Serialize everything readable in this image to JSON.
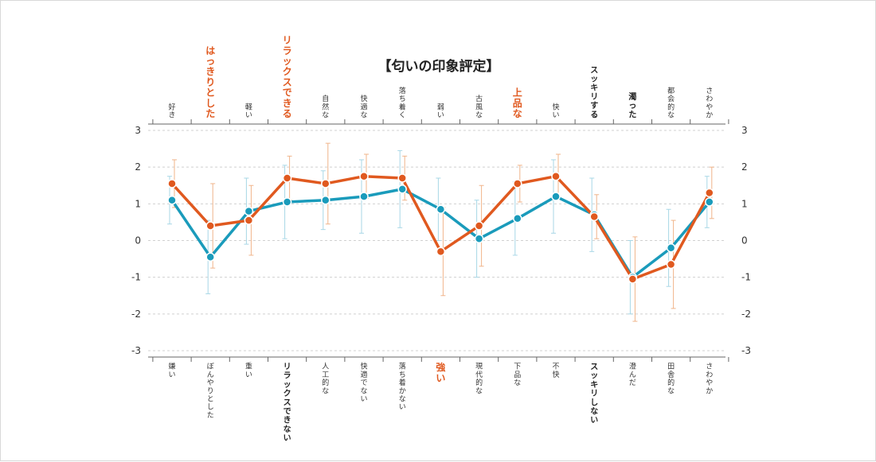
{
  "chart_data": {
    "type": "line",
    "title": "【匂いの印象評定】",
    "ylim": [
      -3,
      3
    ],
    "yticks": [
      3,
      2,
      1,
      0,
      -1,
      -2,
      -3
    ],
    "grid": true,
    "top_labels": [
      {
        "text": "好き",
        "style": "normal"
      },
      {
        "text": "はっきりとした",
        "style": "orange"
      },
      {
        "text": "軽い",
        "style": "normal"
      },
      {
        "text": "リラックスできる",
        "style": "orange"
      },
      {
        "text": "自然な",
        "style": "normal"
      },
      {
        "text": "快適な",
        "style": "normal"
      },
      {
        "text": "落ち着く",
        "style": "normal"
      },
      {
        "text": "弱い",
        "style": "normal"
      },
      {
        "text": "古風な",
        "style": "normal"
      },
      {
        "text": "上品な",
        "style": "orange"
      },
      {
        "text": "快い",
        "style": "normal"
      },
      {
        "text": "スッキリする",
        "style": "bold"
      },
      {
        "text": "濁った",
        "style": "bold"
      },
      {
        "text": "都会的な",
        "style": "normal"
      },
      {
        "text": "さわやか",
        "style": "normal"
      }
    ],
    "bottom_labels": [
      {
        "text": "嫌い",
        "style": "normal"
      },
      {
        "text": "ぼんやりとした",
        "style": "normal"
      },
      {
        "text": "重い",
        "style": "normal"
      },
      {
        "text": "リラックスできない",
        "style": "bold"
      },
      {
        "text": "人工的な",
        "style": "normal"
      },
      {
        "text": "快適でない",
        "style": "normal"
      },
      {
        "text": "落ち着かない",
        "style": "normal"
      },
      {
        "text": "強い",
        "style": "orange"
      },
      {
        "text": "現代的な",
        "style": "normal"
      },
      {
        "text": "下品な",
        "style": "normal"
      },
      {
        "text": "不快",
        "style": "normal"
      },
      {
        "text": "スッキリしない",
        "style": "bold"
      },
      {
        "text": "澄んだ",
        "style": "normal"
      },
      {
        "text": "田舎的な",
        "style": "normal"
      },
      {
        "text": "さわやか",
        "style": "normal"
      }
    ],
    "series": [
      {
        "color": "#1a9bbb",
        "error_color": "#a8d7e6",
        "values": [
          1.1,
          -0.45,
          0.8,
          1.05,
          1.1,
          1.2,
          1.4,
          0.85,
          0.05,
          0.6,
          1.2,
          0.7,
          -1.0,
          -0.2,
          1.05
        ],
        "errors": [
          0.65,
          1.0,
          0.9,
          1.0,
          0.8,
          1.0,
          1.05,
          0.85,
          1.05,
          1.0,
          1.0,
          1.0,
          1.0,
          1.05,
          0.7
        ]
      },
      {
        "color": "#e0591f",
        "error_color": "#f0b48a",
        "values": [
          1.55,
          0.4,
          0.55,
          1.7,
          1.55,
          1.75,
          1.7,
          -0.3,
          0.4,
          1.55,
          1.75,
          0.65,
          -1.05,
          -0.65,
          1.3
        ],
        "errors": [
          0.65,
          1.15,
          0.95,
          0.6,
          1.1,
          0.6,
          0.6,
          1.2,
          1.1,
          0.5,
          0.6,
          0.6,
          1.15,
          1.2,
          0.7
        ]
      }
    ]
  }
}
